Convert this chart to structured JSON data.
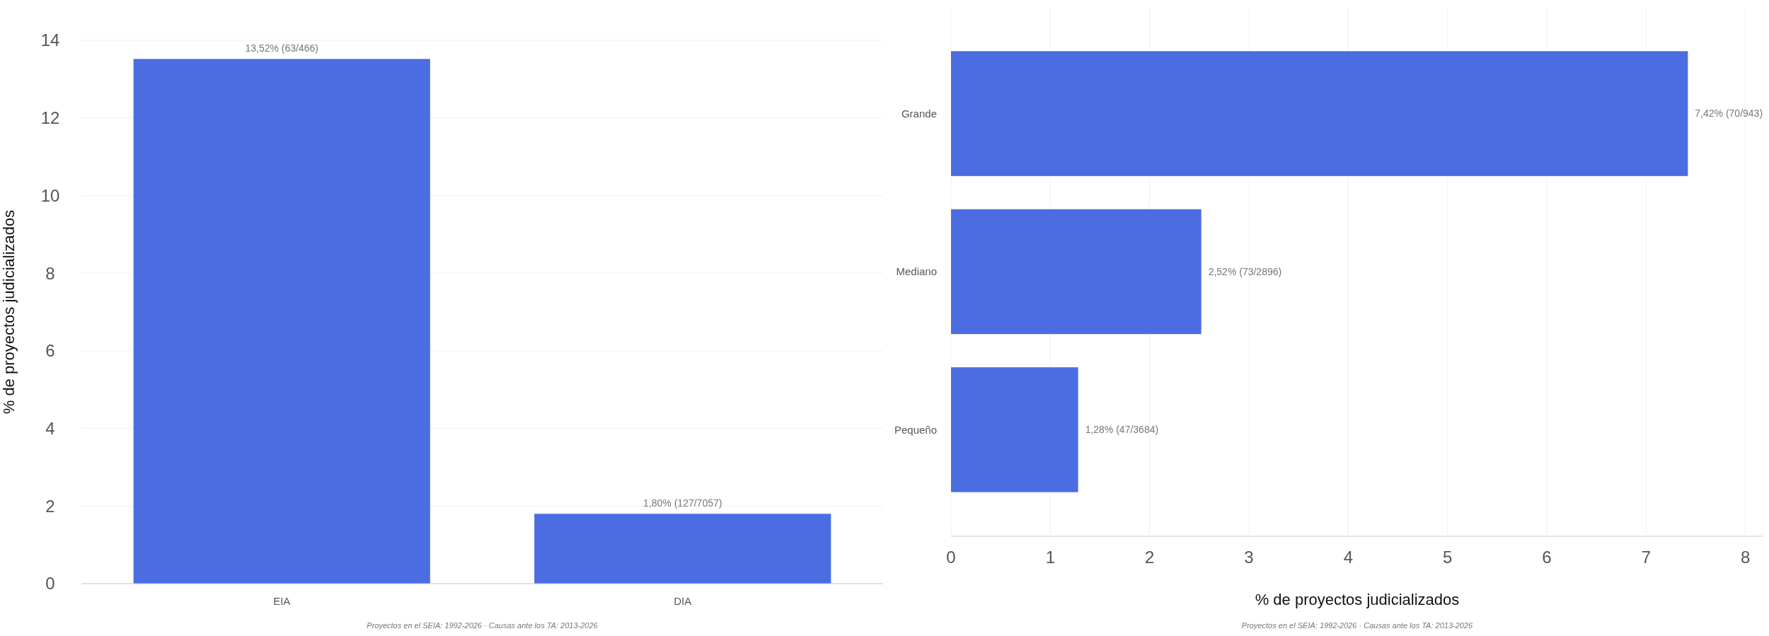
{
  "chart_data": [
    {
      "type": "bar",
      "categories": [
        "EIA",
        "DIA"
      ],
      "values": [
        13.52,
        1.8
      ],
      "color": "#4b6de1",
      "value_labels": [
        "13,52%  (63/466)",
        "1,80%  (127/7057)"
      ],
      "ylabel": "% de proyectos judicializados",
      "ylim": [
        0,
        14
      ],
      "yticks": [
        0,
        2,
        4,
        6,
        8,
        10,
        12,
        14
      ],
      "grid": "y",
      "annotations": [
        "Proyectos en el SEIA: 1992-2026  ·  Causas ante los TA: 2013-2026"
      ]
    },
    {
      "type": "bar",
      "orientation": "horizontal",
      "categories": [
        "Grande",
        "Mediano",
        "Pequeño"
      ],
      "values": [
        7.42,
        2.52,
        1.28
      ],
      "color": "#4b6de1",
      "value_labels": [
        "7,42%  (70/943)",
        "2,52%  (73/2896)",
        "1,28%  (47/3684)"
      ],
      "xlabel": "% de proyectos judicializados",
      "xlim": [
        0,
        8.18
      ],
      "xticks": [
        0,
        1,
        2,
        3,
        4,
        5,
        6,
        7,
        8
      ],
      "grid": "x",
      "annotations": [
        "Proyectos en el SEIA: 1992-2026  ·  Causas ante los TA: 2013-2026"
      ]
    }
  ]
}
